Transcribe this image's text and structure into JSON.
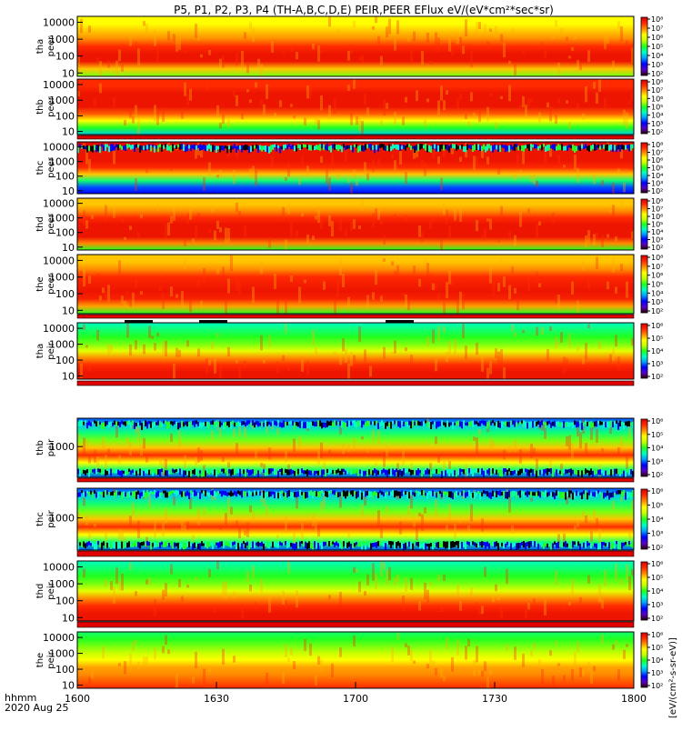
{
  "chart_data": {
    "type": "heatmap",
    "title": "P5, P1, P2, P3, P4 (TH-A,B,C,D,E) PEIR,PEER EFlux eV/(eV*cm²*sec*sr)",
    "xlabel": "hhmm",
    "date_label": "2020 Aug 25",
    "x_ticks": [
      "1600",
      "1630",
      "1700",
      "1730",
      "1800"
    ],
    "x_range_minutes": [
      0,
      120
    ],
    "colorbar_unit_label": "[eV/(cm²-s-sr-eV)]",
    "colorscale": [
      "#2a0000",
      "#5a00c8",
      "#0000ff",
      "#00a0ff",
      "#00ffc0",
      "#20ff20",
      "#c8ff00",
      "#ffff00",
      "#ff8c00",
      "#ff2a00",
      "#dd0000"
    ],
    "panels": [
      {
        "probe": "tha",
        "product": "peer",
        "y_ticks": [
          "10",
          "100",
          "1000",
          "10000"
        ],
        "cb_ticks": [
          "10²",
          "10³",
          "10⁴",
          "10⁵",
          "10⁶",
          "10⁷",
          "10⁸"
        ],
        "band": [
          0.55,
          0.75,
          0.95,
          0.95,
          0.9,
          0.8,
          0.75,
          0.7,
          0.7
        ],
        "noise_rows": 0
      },
      {
        "probe": "thb",
        "product": "peer",
        "y_ticks": [
          "10",
          "100",
          "1000",
          "10000"
        ],
        "cb_ticks": [
          "10²",
          "10³",
          "10⁴",
          "10⁵",
          "10⁶",
          "10⁷",
          "10⁸"
        ],
        "band": [
          0.35,
          0.5,
          0.7,
          0.85,
          0.95,
          0.95,
          0.95,
          0.9,
          0.9
        ],
        "noise_rows": 0
      },
      {
        "probe": "thc",
        "product": "peer",
        "y_ticks": [
          "10",
          "100",
          "1000",
          "10000"
        ],
        "cb_ticks": [
          "10²",
          "10³",
          "10⁴",
          "10⁵",
          "10⁶",
          "10⁷",
          "10⁸"
        ],
        "band": [
          0.2,
          0.25,
          0.45,
          0.75,
          0.9,
          0.95,
          0.95,
          0.95,
          1.0
        ],
        "noise_rows": 2
      },
      {
        "probe": "thd",
        "product": "peer",
        "y_ticks": [
          "10",
          "100",
          "1000",
          "10000"
        ],
        "cb_ticks": [
          "10²",
          "10³",
          "10⁴",
          "10⁵",
          "10⁶",
          "10⁷",
          "10⁸"
        ],
        "band": [
          0.5,
          0.8,
          0.95,
          0.95,
          0.95,
          0.9,
          0.8,
          0.75,
          0.75
        ],
        "noise_rows": 0
      },
      {
        "probe": "the",
        "product": "peer",
        "y_ticks": [
          "10",
          "100",
          "1000",
          "10000"
        ],
        "cb_ticks": [
          "10²",
          "10³",
          "10⁴",
          "10⁵",
          "10⁶",
          "10⁷",
          "10⁸"
        ],
        "band": [
          0.5,
          0.78,
          0.92,
          0.95,
          0.93,
          0.9,
          0.8,
          0.75,
          0.75
        ],
        "noise_rows": 0
      },
      {
        "probe": "tha",
        "product": "peir",
        "y_ticks": [
          "10",
          "100",
          "1000",
          "10000"
        ],
        "cb_ticks": [
          "10²",
          "10³",
          "10⁴",
          "10⁵",
          "10⁶"
        ],
        "band": [
          0.95,
          0.95,
          0.9,
          0.8,
          0.65,
          0.55,
          0.5,
          0.45,
          0.4
        ],
        "noise_rows": 0
      },
      {
        "probe": "thb",
        "product": "peir",
        "y_ticks": [
          "1000"
        ],
        "cb_ticks": [
          "10²",
          "10³",
          "10⁴",
          "10⁵",
          "10⁶"
        ],
        "band": [
          0.25,
          0.45,
          0.7,
          0.9,
          0.75,
          0.55,
          0.45,
          0.35,
          0.25
        ],
        "noise_rows": 2
      },
      {
        "probe": "thc",
        "product": "peir",
        "y_ticks": [
          "1000"
        ],
        "cb_ticks": [
          "10²",
          "10³",
          "10⁴",
          "10⁵",
          "10⁶"
        ],
        "band": [
          0.25,
          0.45,
          0.7,
          0.9,
          0.75,
          0.55,
          0.45,
          0.35,
          0.25
        ],
        "noise_rows": 2
      },
      {
        "probe": "thd",
        "product": "peir",
        "y_ticks": [
          "10",
          "100",
          "1000",
          "10000"
        ],
        "cb_ticks": [
          "10²",
          "10³",
          "10⁴",
          "10⁵",
          "10⁶"
        ],
        "band": [
          0.95,
          0.95,
          0.9,
          0.8,
          0.65,
          0.55,
          0.5,
          0.45,
          0.4
        ],
        "noise_rows": 0
      },
      {
        "probe": "the",
        "product": "peir",
        "y_ticks": [
          "10",
          "100",
          "1000",
          "10000"
        ],
        "cb_ticks": [
          "10²",
          "10³",
          "10⁴",
          "10⁵",
          "10⁶"
        ],
        "band": [
          0.9,
          0.85,
          0.8,
          0.78,
          0.7,
          0.6,
          0.55,
          0.5,
          0.45
        ],
        "noise_rows": 0
      }
    ]
  }
}
